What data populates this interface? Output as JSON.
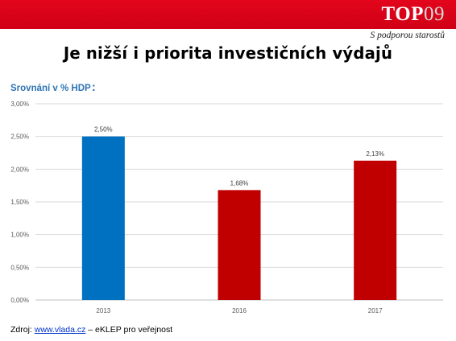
{
  "header": {
    "logo_top": "TOP",
    "logo_num": "09",
    "tagline": "S podporou starostů",
    "brand_color": "#e3051b"
  },
  "slide": {
    "title": "Je nižší i priorita investičních výdajů",
    "subtitle": "Srovnání v % HDP",
    "subtitle_colon": ":"
  },
  "source": {
    "prefix": "Zdroj: ",
    "link_text": "www.vlada.cz",
    "suffix": " – eKLEP pro veřejnost"
  },
  "chart_data": {
    "type": "bar",
    "categories": [
      "2013",
      "2016",
      "2017"
    ],
    "values": [
      2.5,
      1.68,
      2.13
    ],
    "data_labels": [
      "2,50%",
      "1,68%",
      "2,13%"
    ],
    "bar_colors": [
      "#0070c0",
      "#c00000",
      "#c00000"
    ],
    "ylim": [
      0,
      3
    ],
    "yticks": [
      "0,00%",
      "0,50%",
      "1,00%",
      "1,50%",
      "2,00%",
      "2,50%",
      "3,00%"
    ],
    "grid": true,
    "legend": "none",
    "xlabel": "",
    "ylabel": ""
  }
}
